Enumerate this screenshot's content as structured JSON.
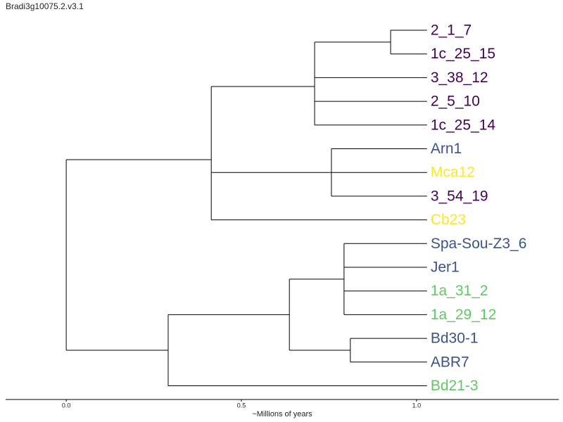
{
  "chart_data": {
    "type": "dendrogram",
    "title": "Bradi3g10075.2.v3.1",
    "x_label": "~Millions of years",
    "xlim": [
      -0.173,
      1.406
    ],
    "xticks": [
      {
        "value": 0,
        "label": "0.0"
      },
      {
        "value": 0.5,
        "label": "0.5"
      },
      {
        "value": 1,
        "label": "1.0"
      }
    ],
    "tree": {
      "x": 0,
      "children": [
        {
          "x": 0.414,
          "children": [
            {
              "x": 0.709,
              "children": [
                {
                  "x": 0.926,
                  "children": [
                    {
                      "x": 1.03,
                      "label": "2_1_7",
                      "color": "#440154"
                    },
                    {
                      "x": 1.03,
                      "label": "1c_25_15",
                      "color": "#440154"
                    }
                  ]
                },
                {
                  "x": 1.03,
                  "label": "3_38_12",
                  "color": "#440154"
                },
                {
                  "x": 1.03,
                  "label": "2_5_10",
                  "color": "#440154"
                },
                {
                  "x": 1.03,
                  "label": "1c_25_14",
                  "color": "#440154"
                }
              ]
            },
            {
              "x": 0.757,
              "children": [
                {
                  "x": 1.03,
                  "label": "Arn1",
                  "color": "#3b528b"
                },
                {
                  "x": 1.03,
                  "label": "Mca12",
                  "color": "#fde725"
                },
                {
                  "x": 1.03,
                  "label": "3_54_19",
                  "color": "#440154"
                }
              ]
            },
            {
              "x": 1.03,
              "label": "Cb23",
              "color": "#fde725"
            }
          ]
        },
        {
          "x": 0.291,
          "children": [
            {
              "x": 0.637,
              "children": [
                {
                  "x": 0.793,
                  "children": [
                    {
                      "x": 1.03,
                      "label": "Spa-Sou-Z3_6",
                      "color": "#3b528b"
                    },
                    {
                      "x": 1.03,
                      "label": "Jer1",
                      "color": "#3b528b"
                    },
                    {
                      "x": 1.03,
                      "label": "1a_31_2",
                      "color": "#5ec962"
                    },
                    {
                      "x": 1.03,
                      "label": "1a_29_12",
                      "color": "#5ec962"
                    }
                  ]
                },
                {
                  "x": 0.811,
                  "children": [
                    {
                      "x": 1.03,
                      "label": "Bd30-1",
                      "color": "#3b528b"
                    },
                    {
                      "x": 1.03,
                      "label": "ABR7",
                      "color": "#3b528b"
                    }
                  ]
                }
              ]
            },
            {
              "x": 1.03,
              "label": "Bd21-3",
              "color": "#5ec962"
            }
          ]
        }
      ]
    }
  }
}
